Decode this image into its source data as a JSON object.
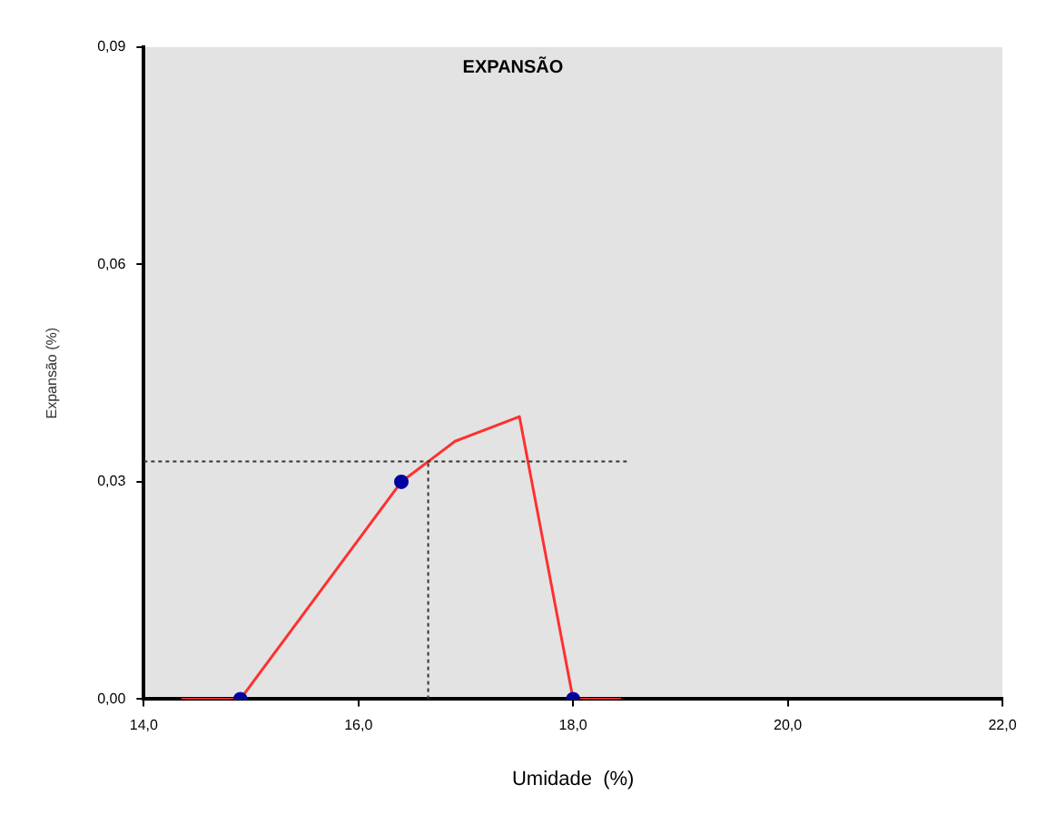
{
  "chart_data": {
    "type": "line",
    "title": "EXPANSÃO",
    "xlabel": "Umidade  (%)",
    "ylabel": "Expansão (%)",
    "xlim": [
      14,
      22
    ],
    "xticks": [
      {
        "value": 14,
        "label": "14,0"
      },
      {
        "value": 16,
        "label": "16,0"
      },
      {
        "value": 18,
        "label": "18,0"
      },
      {
        "value": 20,
        "label": "20,0"
      },
      {
        "value": 22,
        "label": "22,0"
      }
    ],
    "ylim": [
      0,
      0.09
    ],
    "yticks": [
      {
        "value": 0,
        "label": "0,00"
      },
      {
        "value": 0.03,
        "label": "0,03"
      },
      {
        "value": 0.06,
        "label": "0,06"
      },
      {
        "value": 0.09,
        "label": "0,09"
      }
    ],
    "grid": false,
    "legend": false,
    "series": [
      {
        "color": "#ff3030",
        "marker": "none",
        "line_style": "solid",
        "x": [
          14.35,
          14.9,
          16.4,
          16.65,
          16.9,
          17.5,
          18.0,
          18.45
        ],
        "values": [
          0,
          0,
          0.03,
          0.0328,
          0.0356,
          0.039,
          0,
          0
        ]
      },
      {
        "color": "#333333",
        "marker": "none",
        "line_style": "dotted",
        "x": [
          14,
          18.5
        ],
        "values": [
          0.0328,
          0.0328
        ]
      },
      {
        "color": "#333333",
        "marker": "none",
        "line_style": "dotted",
        "x": [
          16.65,
          16.65
        ],
        "values": [
          0,
          0.0328
        ]
      },
      {
        "type": "scatter",
        "color": "#0000a0",
        "marker": "circle",
        "x": [
          14.9,
          16.4,
          18.0
        ],
        "values": [
          0,
          0.03,
          0
        ]
      }
    ]
  }
}
